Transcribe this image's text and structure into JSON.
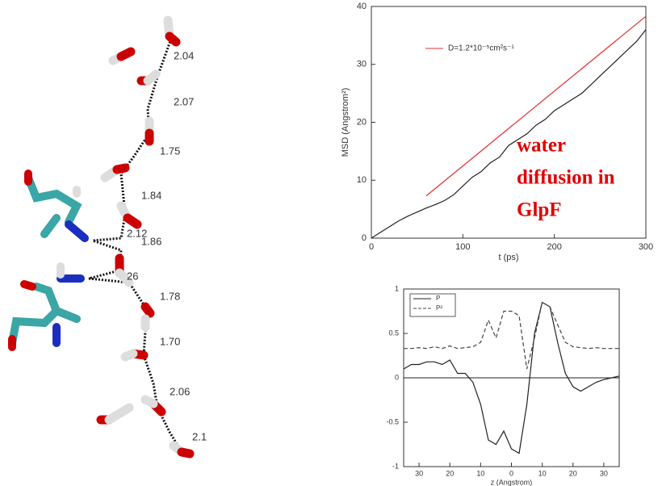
{
  "molecule": {
    "distance_labels": [
      "2.04",
      "2.07",
      "1.75",
      "1.84",
      "2.12",
      "1.86",
      "26",
      "1.78",
      "1.70",
      "2.06",
      "2.1"
    ]
  },
  "chart_data": [
    {
      "type": "line",
      "y_label": "MSD (Angstrom²)",
      "x_label": "t (ps)",
      "xlim": [
        0,
        300
      ],
      "xticks": [
        0,
        100,
        200,
        300
      ],
      "ylim": [
        0,
        40
      ],
      "yticks": [
        0,
        10,
        20,
        30,
        40
      ],
      "annotation": [
        "water",
        "diffusion in",
        "GlpF"
      ],
      "series": [
        {
          "name": "D=1.2*10⁻⁵cm²s⁻¹",
          "color": "#e03030",
          "in_legend": true,
          "x": [
            60,
            300
          ],
          "values": [
            7.3,
            38.3
          ]
        },
        {
          "color": "#222222",
          "in_legend": false,
          "x": [
            0,
            10,
            20,
            30,
            40,
            50,
            60,
            70,
            80,
            90,
            100,
            110,
            120,
            130,
            140,
            150,
            160,
            170,
            180,
            190,
            200,
            210,
            220,
            230,
            240,
            250,
            260,
            270,
            280,
            290,
            300
          ],
          "values": [
            0,
            1,
            2,
            3,
            3.8,
            4.5,
            5.2,
            5.8,
            6.5,
            7.5,
            9,
            10.5,
            11.5,
            13,
            14,
            16,
            17,
            18,
            19.5,
            20.5,
            22,
            23,
            24,
            25,
            26.5,
            28,
            29.5,
            31,
            32.5,
            34,
            36
          ]
        }
      ]
    },
    {
      "type": "line",
      "x_label": "z (Angstrom)",
      "xlim": [
        -35,
        35
      ],
      "xticks": [
        {
          "value": -30,
          "label": "30"
        },
        {
          "value": -20,
          "label": "20"
        },
        {
          "value": -10,
          "label": "10"
        },
        0,
        10,
        20,
        30
      ],
      "ylim": [
        -1,
        1
      ],
      "yticks": [
        -1,
        -0.5,
        0,
        0.5,
        1
      ],
      "x": [
        -35,
        -32.5,
        -30,
        -27.5,
        -25,
        -22.5,
        -20,
        -17.5,
        -15,
        -12.5,
        -10,
        -7.5,
        -5,
        -2.5,
        0,
        2.5,
        5,
        7.5,
        10,
        12.5,
        15,
        17.5,
        20,
        22.5,
        25,
        27.5,
        30,
        32.5,
        35
      ],
      "series": [
        {
          "name": "P",
          "color": "#222222",
          "dash": false,
          "in_legend": true,
          "values": [
            0.1,
            0.15,
            0.15,
            0.18,
            0.18,
            0.15,
            0.2,
            0.05,
            0.05,
            -0.05,
            -0.3,
            -0.7,
            -0.75,
            -0.6,
            -0.8,
            -0.85,
            -0.3,
            0.5,
            0.85,
            0.8,
            0.4,
            0.05,
            -0.1,
            -0.15,
            -0.1,
            -0.05,
            -0.02,
            0,
            0.02
          ]
        },
        {
          "name": "P²",
          "color": "#444444",
          "dash": true,
          "in_legend": true,
          "values": [
            0.33,
            0.33,
            0.34,
            0.33,
            0.35,
            0.33,
            0.36,
            0.33,
            0.34,
            0.35,
            0.4,
            0.65,
            0.45,
            0.75,
            0.75,
            0.7,
            0.1,
            0.45,
            0.85,
            0.8,
            0.6,
            0.4,
            0.35,
            0.34,
            0.33,
            0.34,
            0.33,
            0.33,
            0.33
          ]
        }
      ]
    }
  ]
}
